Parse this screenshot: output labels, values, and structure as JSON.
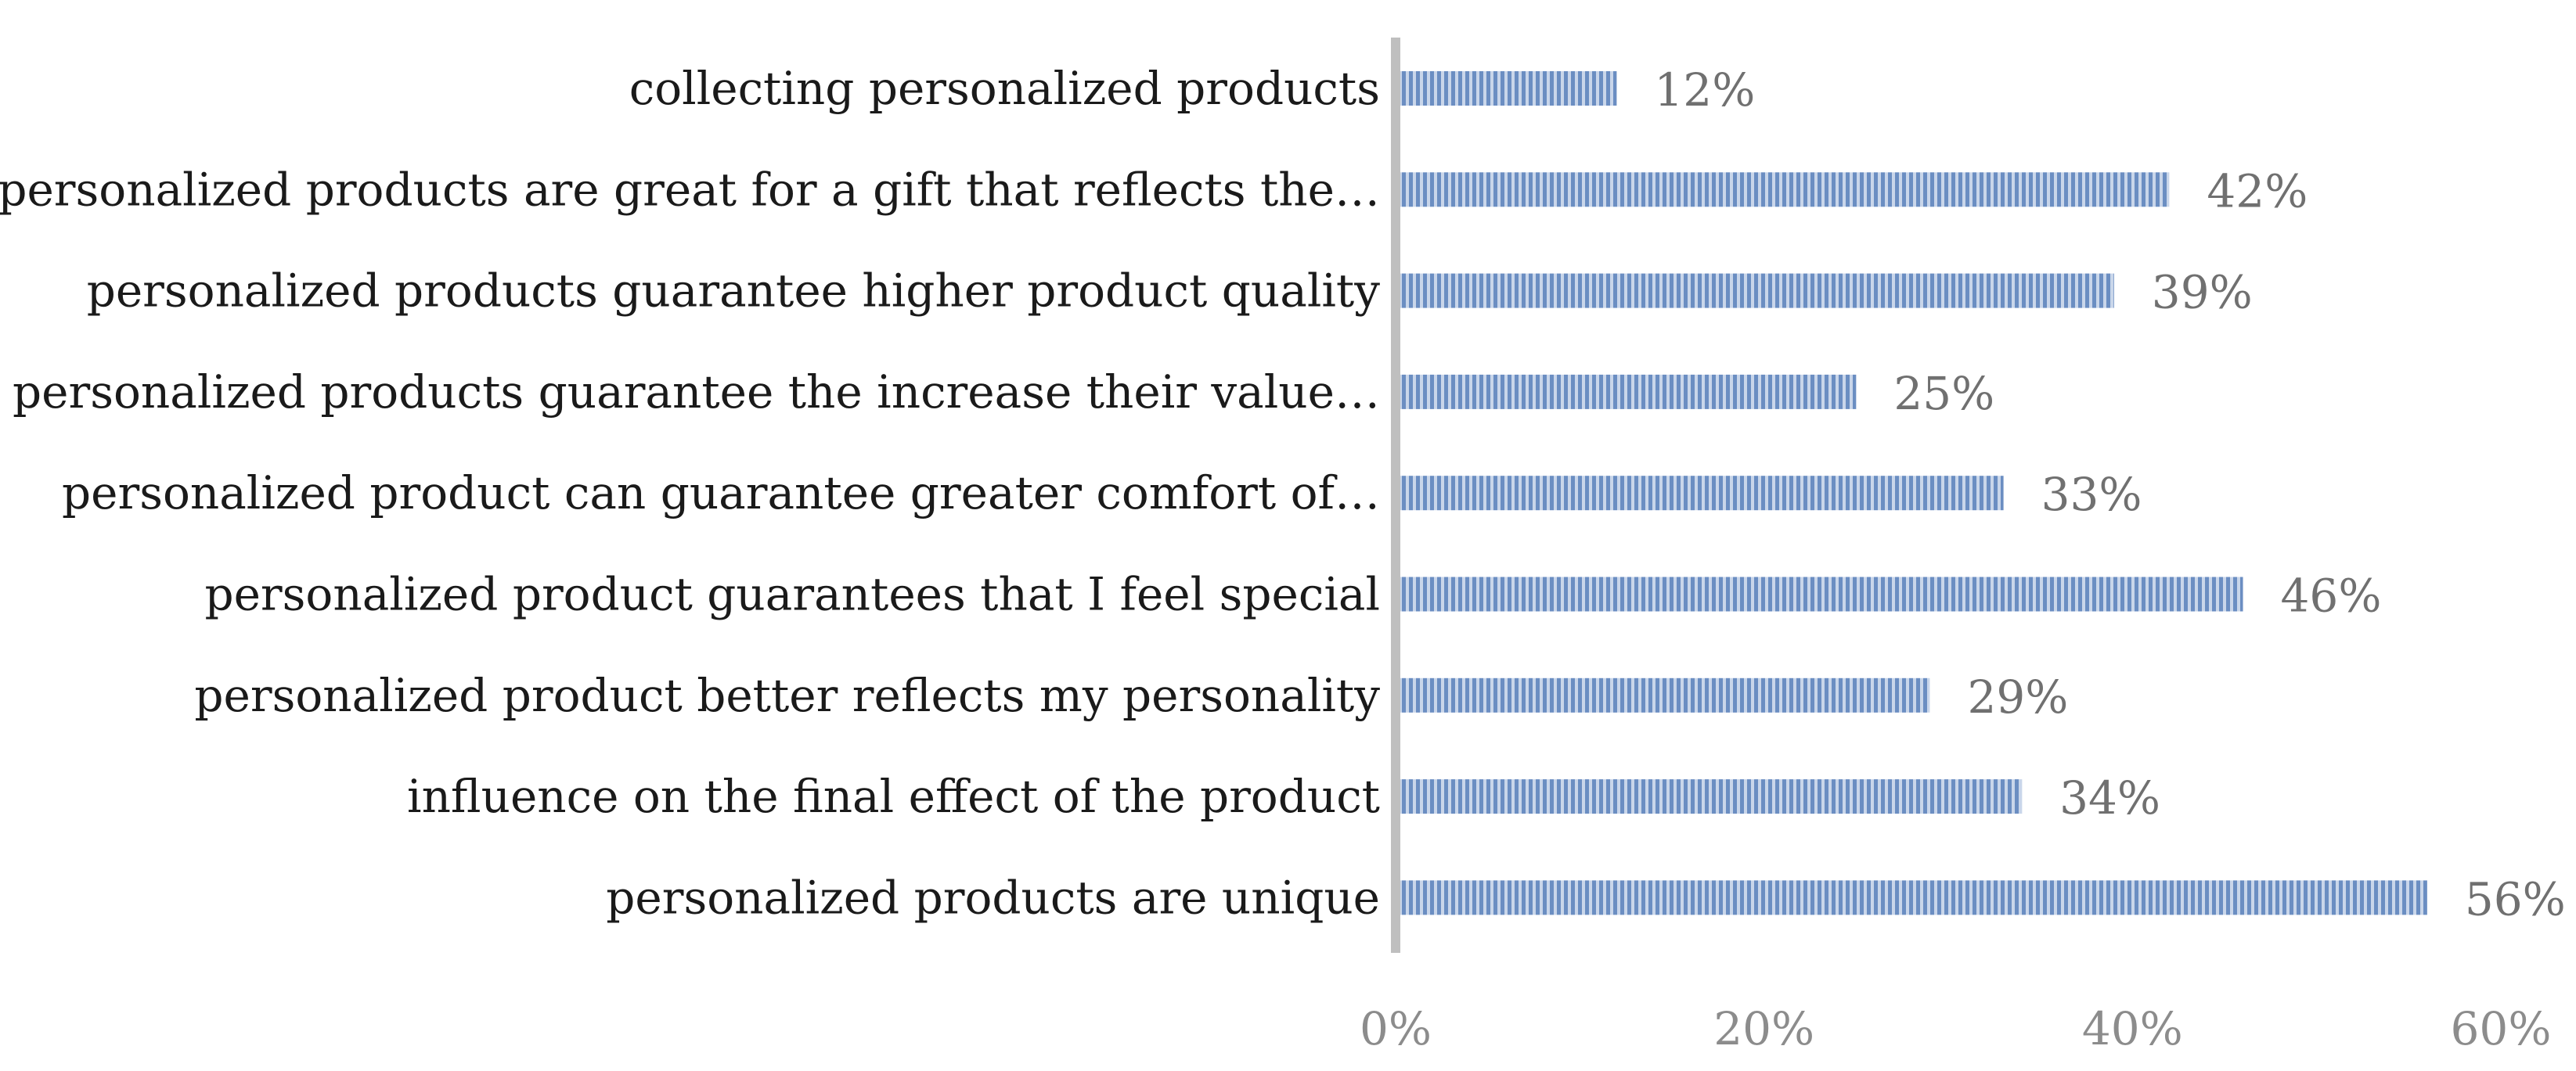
{
  "chart_data": {
    "type": "bar",
    "orientation": "horizontal",
    "title": "",
    "xlabel": "",
    "ylabel": "",
    "categories": [
      "collecting personalized products",
      "personalized products are great for a gift that reflects the…",
      "personalized products guarantee higher product quality",
      "personalized products guarantee the increase their value…",
      "personalized product can guarantee greater comfort of…",
      "personalized product guarantees that I feel special",
      "personalized product better reflects my personality",
      "influence on the final effect of the product",
      "personalized products are unique"
    ],
    "values": [
      12,
      42,
      39,
      25,
      33,
      46,
      29,
      34,
      56
    ],
    "value_labels": [
      "12%",
      "42%",
      "39%",
      "25%",
      "33%",
      "46%",
      "29%",
      "34%",
      "56%"
    ],
    "xlim": [
      0,
      60
    ],
    "xticks": [
      0,
      20,
      40,
      60
    ],
    "xtick_labels": [
      "0%",
      "20%",
      "40%",
      "60%"
    ],
    "grid": false,
    "legend": "none",
    "bar_color": "#6b8ec2",
    "bar_stripe_color": "#c9d6ea",
    "axis_color": "#bfbfbf"
  }
}
